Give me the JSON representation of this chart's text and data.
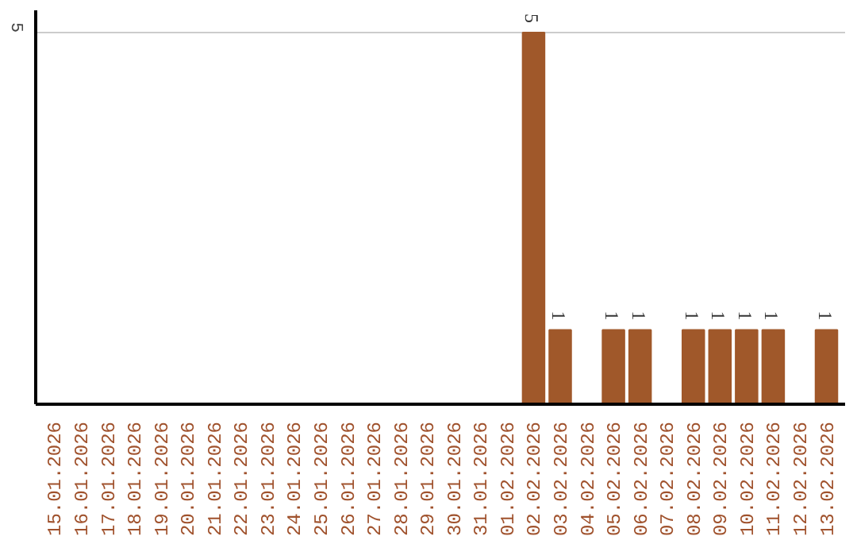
{
  "chart_data": {
    "type": "bar",
    "categories": [
      "15.01.2026",
      "16.01.2026",
      "17.01.2026",
      "18.01.2026",
      "19.01.2026",
      "20.01.2026",
      "21.01.2026",
      "22.01.2026",
      "23.01.2026",
      "24.01.2026",
      "25.01.2026",
      "26.01.2026",
      "27.01.2026",
      "28.01.2026",
      "29.01.2026",
      "30.01.2026",
      "31.01.2026",
      "01.02.2026",
      "02.02.2026",
      "03.02.2026",
      "04.02.2026",
      "05.02.2026",
      "06.02.2026",
      "07.02.2026",
      "08.02.2026",
      "09.02.2026",
      "10.02.2026",
      "11.02.2026",
      "12.02.2026",
      "13.02.2026"
    ],
    "values": [
      null,
      null,
      null,
      null,
      null,
      null,
      null,
      null,
      null,
      null,
      null,
      null,
      null,
      null,
      null,
      null,
      null,
      null,
      5,
      1,
      null,
      1,
      1,
      null,
      1,
      1,
      1,
      1,
      null,
      1
    ],
    "data_labels": true,
    "color": "#a0582a",
    "ylim": [
      0,
      5.3
    ],
    "yticks": [
      5
    ],
    "grid": "y"
  }
}
